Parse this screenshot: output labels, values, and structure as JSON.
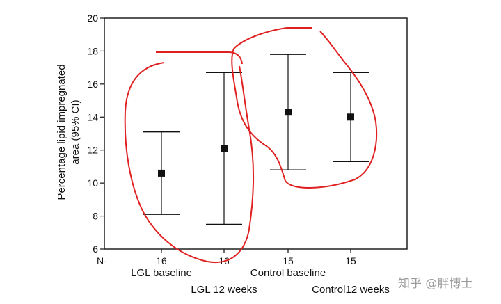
{
  "chart_data": {
    "type": "errorbar",
    "ylabel_lines": [
      "Percentage lipid impregnated",
      "area (95% CI)"
    ],
    "ylim": [
      6,
      20
    ],
    "yticks": [
      6,
      8,
      10,
      12,
      14,
      16,
      18,
      20
    ],
    "n_label": "N-",
    "categories": [
      "LGL baseline",
      "LGL 12 weeks",
      "Control baseline",
      "Control12 weeks"
    ],
    "n_values": [
      "16",
      "16",
      "15",
      "15"
    ],
    "points": [
      {
        "mean": 10.6,
        "lower": 8.1,
        "upper": 13.1
      },
      {
        "mean": 12.1,
        "lower": 7.5,
        "upper": 16.7
      },
      {
        "mean": 14.3,
        "lower": 10.8,
        "upper": 17.8
      },
      {
        "mean": 14.0,
        "lower": 11.3,
        "upper": 16.7
      }
    ],
    "annotation_color": "#e02020"
  },
  "watermark": "知乎 @胖博士"
}
